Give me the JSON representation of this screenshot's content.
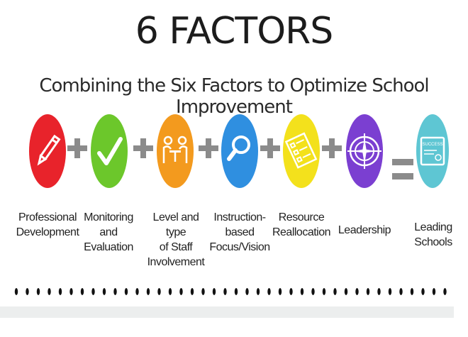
{
  "header": {
    "title": "6 FACTORS",
    "subtitle": "Combining the Six Factors to Optimize School Improvement"
  },
  "factors": [
    {
      "label_lines": [
        "Professional",
        "Development"
      ],
      "color": "#e8232b",
      "icon": "pencil-icon"
    },
    {
      "label_lines": [
        "Monitoring and",
        "Evaluation"
      ],
      "color": "#6cc72b",
      "icon": "checkmark-icon"
    },
    {
      "label_lines": [
        "Level and type",
        "of Staff",
        "Involvement"
      ],
      "color": "#f39a1e",
      "icon": "meeting-icon"
    },
    {
      "label_lines": [
        "Instruction-",
        "based",
        "Focus/Vision"
      ],
      "color": "#2f8fe0",
      "icon": "magnifier-icon"
    },
    {
      "label_lines": [
        "Resource",
        "Reallocation"
      ],
      "color": "#f3e11c",
      "icon": "checklist-icon"
    },
    {
      "label_lines": [
        "Leadership"
      ],
      "color": "#7b3fd1",
      "icon": "compass-icon"
    }
  ],
  "result": {
    "label_lines": [
      "Leading",
      "Schools"
    ],
    "color": "#5ec6d3",
    "icon": "certificate-icon",
    "certificate_text": "SUCCESS"
  },
  "operators": {
    "plus_color": "#8b8b8b",
    "equals_color": "#8b8b8b"
  }
}
